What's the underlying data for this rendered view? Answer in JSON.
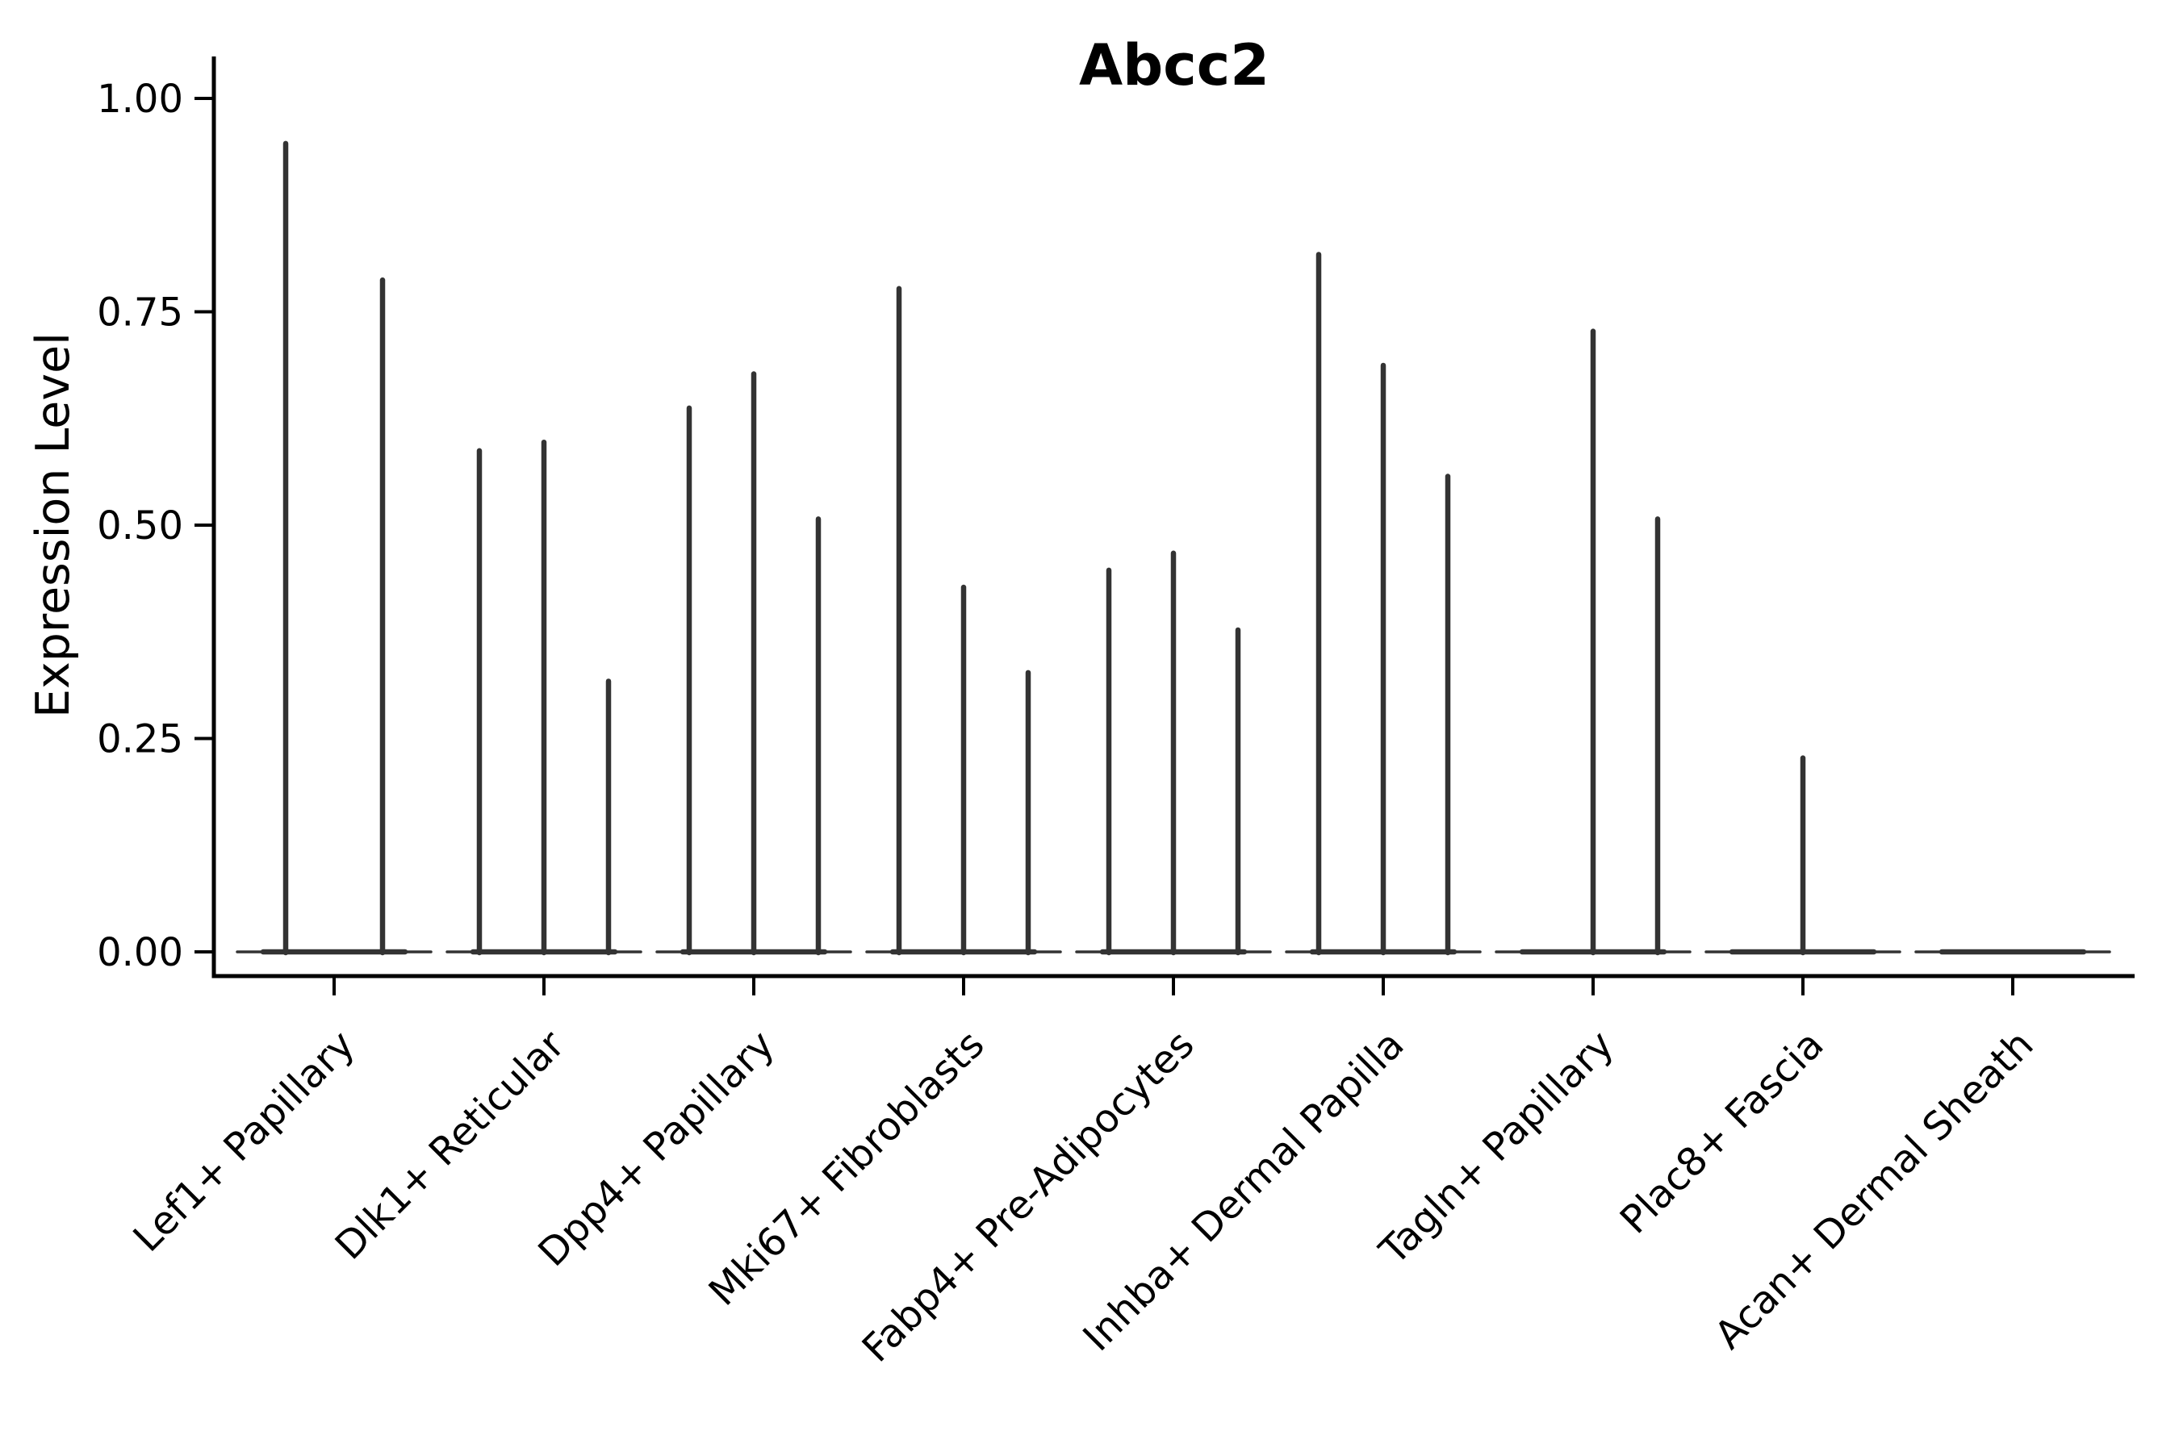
{
  "figure": {
    "title": "Abcc2",
    "ylabel": "Expression Level"
  },
  "chart_data": {
    "type": "violin",
    "title": "Abcc2",
    "xlabel": "",
    "ylabel": "Expression Level",
    "ylim": [
      0.0,
      1.0
    ],
    "grid": false,
    "legend": "none",
    "yticks": [
      {
        "value": 0.0,
        "label": "0.00"
      },
      {
        "value": 0.25,
        "label": "0.25"
      },
      {
        "value": 0.5,
        "label": "0.50"
      },
      {
        "value": 0.75,
        "label": "0.75"
      },
      {
        "value": 1.0,
        "label": "1.00"
      }
    ],
    "categories": [
      "Lef1+ Papillary",
      "Dlk1+ Reticular",
      "Dpp4+ Papillary",
      "Mki67+ Fibroblasts",
      "Fabp4+ Pre-Adipocytes",
      "Inhba+ Dermal Papilla",
      "Tagln+ Papillary",
      "Plac8+ Fascia",
      "Acan+ Dermal Sheath"
    ],
    "groups": [
      {
        "category": "Lef1+ Papillary",
        "violins": [
          {
            "offset": -60,
            "peak": 0.95
          },
          {
            "offset": 60,
            "peak": 0.79
          }
        ]
      },
      {
        "category": "Dlk1+ Reticular",
        "violins": [
          {
            "offset": -80,
            "peak": 0.59
          },
          {
            "offset": 0,
            "peak": 0.6
          },
          {
            "offset": 80,
            "peak": 0.32
          }
        ]
      },
      {
        "category": "Dpp4+ Papillary",
        "violins": [
          {
            "offset": -80,
            "peak": 0.64
          },
          {
            "offset": 0,
            "peak": 0.68
          },
          {
            "offset": 80,
            "peak": 0.51
          }
        ]
      },
      {
        "category": "Mki67+ Fibroblasts",
        "violins": [
          {
            "offset": -80,
            "peak": 0.78
          },
          {
            "offset": 0,
            "peak": 0.43
          },
          {
            "offset": 80,
            "peak": 0.33
          }
        ]
      },
      {
        "category": "Fabp4+ Pre-Adipocytes",
        "violins": [
          {
            "offset": -80,
            "peak": 0.45
          },
          {
            "offset": 0,
            "peak": 0.47
          },
          {
            "offset": 80,
            "peak": 0.38
          }
        ]
      },
      {
        "category": "Inhba+ Dermal Papilla",
        "violins": [
          {
            "offset": -80,
            "peak": 0.82
          },
          {
            "offset": 0,
            "peak": 0.69
          },
          {
            "offset": 80,
            "peak": 0.56
          }
        ]
      },
      {
        "category": "Tagln+ Papillary",
        "violins": [
          {
            "offset": 0,
            "peak": 0.73
          },
          {
            "offset": 80,
            "peak": 0.51
          }
        ]
      },
      {
        "category": "Plac8+ Fascia",
        "violins": [
          {
            "offset": 0,
            "peak": 0.23
          }
        ]
      },
      {
        "category": "Acan+ Dermal Sheath",
        "violins": []
      }
    ],
    "colors": {
      "violin": "#333333",
      "spine": "#000000",
      "text": "#000000",
      "background": "#ffffff"
    }
  }
}
